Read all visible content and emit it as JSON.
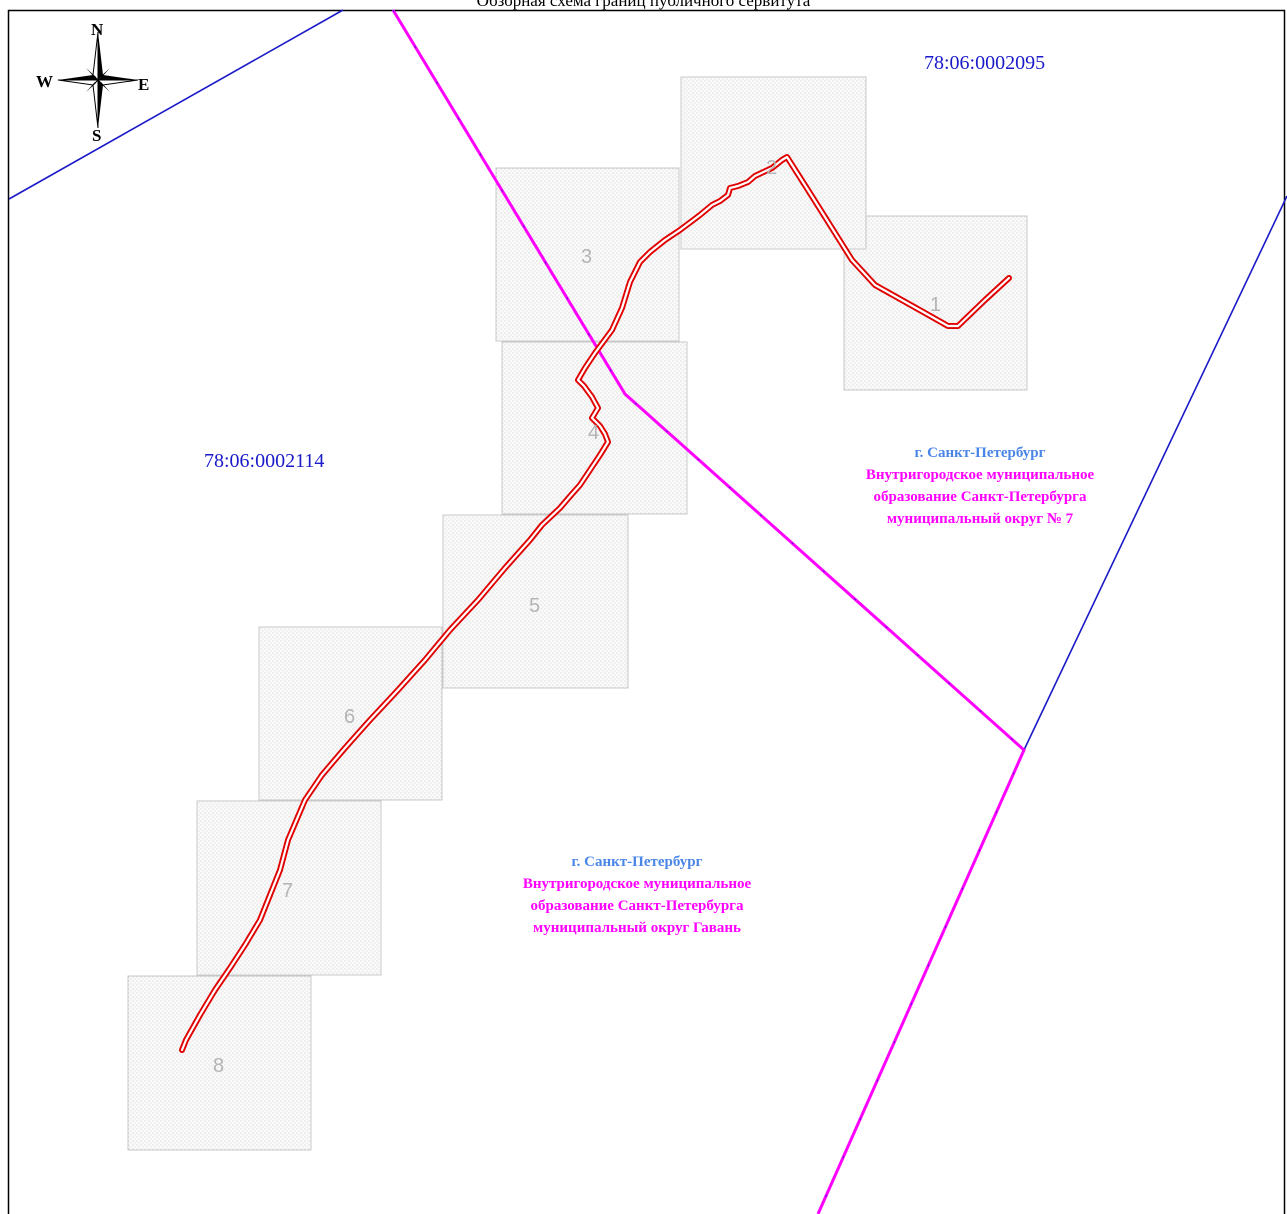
{
  "title": "Обзорная схема границ публичного сервитута",
  "compass": {
    "north": "N",
    "south": "S",
    "east": "E",
    "west": "W"
  },
  "cadastral_blocks": {
    "northeast": "78:06:0002095",
    "west": "78:06:0002114"
  },
  "districts": {
    "okrug_7": {
      "city": "г. Санкт-Петербург",
      "mo_lines": [
        "Внутригородское муниципальное",
        "образование Санкт-Петербурга",
        "муниципальный округ № 7"
      ]
    },
    "gavan": {
      "city": "г. Санкт-Петербург",
      "mo_lines": [
        "Внутригородское муниципальное",
        "образование Санкт-Петербурга",
        "муниципальный округ Гавань"
      ]
    }
  },
  "sheets": [
    "1",
    "2",
    "3",
    "4",
    "5",
    "6",
    "7",
    "8"
  ],
  "colors": {
    "cadastral_line": "#1a1ac8",
    "municipal_boundary": "#ff00ff",
    "servitude": "#e00000",
    "sheet_border": "#c8c8c8"
  }
}
